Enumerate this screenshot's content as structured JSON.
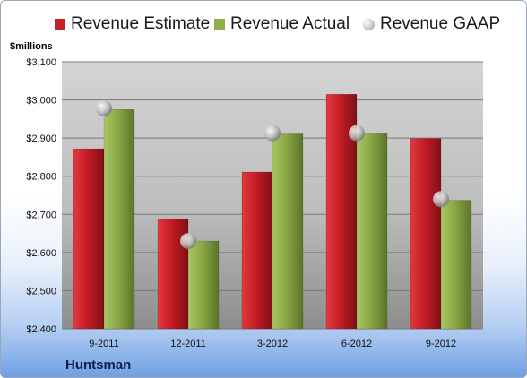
{
  "chart_data": {
    "type": "bar",
    "unit_label": "$millions",
    "company": "Huntsman",
    "categories": [
      "9-2011",
      "12-2011",
      "3-2012",
      "6-2012",
      "9-2012"
    ],
    "series": [
      {
        "name": "Revenue Estimate",
        "type": "bar",
        "color": "#c8202a",
        "values": [
          2872,
          2687,
          2811,
          3015,
          2899
        ]
      },
      {
        "name": "Revenue Actual",
        "type": "bar",
        "color": "#8fae4c",
        "values": [
          2975,
          2630,
          2911,
          2913,
          2737
        ]
      },
      {
        "name": "Revenue GAAP",
        "type": "scatter",
        "color": "#b5b5b5",
        "values": [
          2978,
          2630,
          2913,
          2913,
          2740
        ]
      }
    ],
    "yticks": [
      "$2,400",
      "$2,500",
      "$2,600",
      "$2,700",
      "$2,800",
      "$2,900",
      "$3,000",
      "$3,100"
    ],
    "ylim": [
      2400,
      3100
    ],
    "grid": true,
    "legend_position": "top"
  }
}
